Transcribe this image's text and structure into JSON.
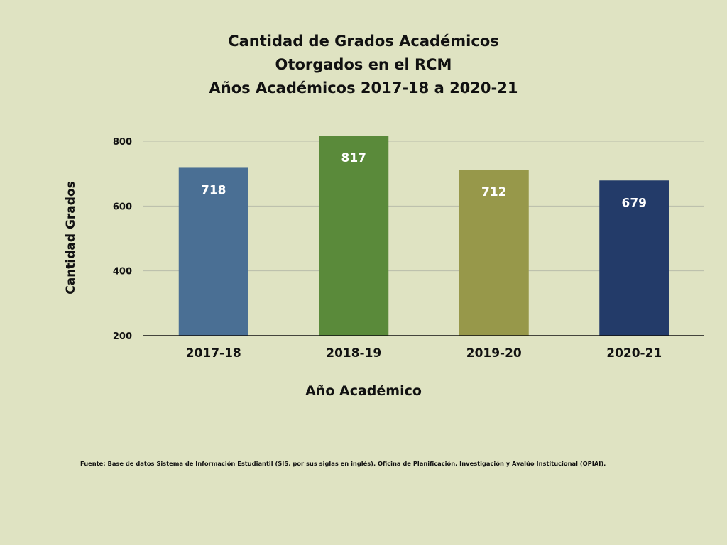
{
  "chart_data": {
    "type": "bar",
    "title_lines": [
      "Cantidad de Grados Académicos",
      "Otorgados en el RCM",
      "Años Académicos 2017-18 a 2020-21"
    ],
    "categories": [
      "2017-18",
      "2018-19",
      "2019-20",
      "2020-21"
    ],
    "values": [
      718,
      817,
      712,
      679
    ],
    "bar_colors": [
      "#4a6f94",
      "#5a8a3a",
      "#97984a",
      "#233b69"
    ],
    "xlabel": "Año Académico",
    "ylabel": "Cantidad Grados",
    "ylim": [
      200,
      850
    ],
    "yticks": [
      200,
      400,
      600,
      800
    ],
    "grid": true,
    "data_labels": true
  },
  "source_note": "Fuente: Base de datos Sistema de Información Estudiantil (SIS, por sus siglas en inglés). Oficina de Planificación, Investigación y Avalúo Institucional (OPIAI)."
}
